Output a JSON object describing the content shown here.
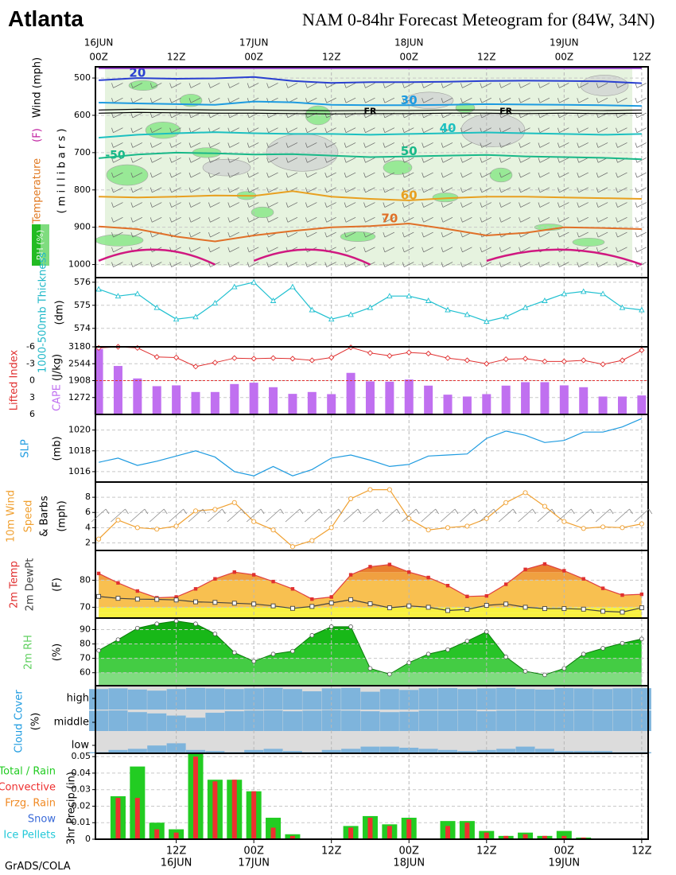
{
  "header": {
    "city": "Atlanta",
    "title": "NAM 0-84hr Forecast Meteogram for (84W, 34N)",
    "footer": "GrADS/COLA"
  },
  "time_axis": {
    "top_labels": [
      {
        "h": 0,
        "l1": "16JUN",
        "l2": "00Z"
      },
      {
        "h": 12,
        "l1": "",
        "l2": "12Z"
      },
      {
        "h": 24,
        "l1": "17JUN",
        "l2": "00Z"
      },
      {
        "h": 36,
        "l1": "",
        "l2": "12Z"
      },
      {
        "h": 48,
        "l1": "18JUN",
        "l2": "00Z"
      },
      {
        "h": 60,
        "l1": "",
        "l2": "12Z"
      },
      {
        "h": 72,
        "l1": "19JUN",
        "l2": "00Z"
      },
      {
        "h": 84,
        "l1": "",
        "l2": "12Z"
      }
    ],
    "bottom_labels": [
      {
        "h": 12,
        "l1": "12Z",
        "l2": "16JUN"
      },
      {
        "h": 24,
        "l1": "00Z",
        "l2": "17JUN"
      },
      {
        "h": 36,
        "l1": "12Z",
        "l2": ""
      },
      {
        "h": 48,
        "l1": "00Z",
        "l2": "18JUN"
      },
      {
        "h": 60,
        "l1": "12Z",
        "l2": ""
      },
      {
        "h": 72,
        "l1": "00Z",
        "l2": "19JUN"
      },
      {
        "h": 84,
        "l1": "12Z",
        "l2": ""
      }
    ]
  },
  "chart_data": [
    {
      "type": "line",
      "panel": "Temperature (F) / Wind (mph) / RH (%) cross-section",
      "ylabel_parts": [
        "Temperature",
        "(F)",
        "Wind (mph)"
      ],
      "ylabel_units": "( m i l l i b a r s )",
      "rh_label": "RH (%)",
      "y_ticks": [
        500,
        600,
        700,
        800,
        900,
        1000
      ],
      "ylim": [
        470,
        1035
      ],
      "isotherms": [
        {
          "label": "20",
          "color": "#2a40d0",
          "p": [
            506,
            500,
            502,
            501,
            497,
            508,
            513,
            511,
            511,
            510,
            508,
            507,
            508,
            509,
            514
          ]
        },
        {
          "label": "30",
          "color": "#1e9be0",
          "p": [
            566,
            568,
            570,
            572,
            563,
            565,
            572,
            573,
            573,
            572,
            570,
            571,
            572,
            573,
            575
          ]
        },
        {
          "label": "40",
          "color": "#1cc0c0",
          "p": [
            660,
            652,
            648,
            645,
            648,
            650,
            650,
            652,
            650,
            648,
            646,
            648,
            650,
            652,
            650
          ]
        },
        {
          "label": "50",
          "color": "#18b888",
          "p": [
            715,
            705,
            700,
            702,
            705,
            704,
            708,
            712,
            710,
            708,
            706,
            710,
            712,
            714,
            718
          ]
        },
        {
          "label": "60",
          "color": "#e8a020",
          "p": [
            818,
            820,
            818,
            815,
            816,
            803,
            818,
            824,
            828,
            822,
            818,
            818,
            820,
            822,
            824
          ]
        },
        {
          "label": "70",
          "color": "#e07028",
          "p": [
            898,
            905,
            925,
            938,
            922,
            910,
            900,
            897,
            890,
            905,
            922,
            915,
            900,
            902,
            905
          ]
        }
      ],
      "freezing_label": "FR",
      "freezing_level": [
        590,
        588,
        589,
        590,
        590,
        591,
        592,
        591,
        591,
        590,
        590,
        591,
        590,
        591,
        590
      ],
      "fr_marks": [
        42,
        63
      ]
    },
    {
      "type": "line",
      "panel": "1000-500mb Thickness (dm)",
      "ylabel": "1000-500mb Thickness",
      "yunits": "(dm)",
      "y_ticks": [
        574,
        575,
        576
      ],
      "ylim": [
        573.2,
        576.2
      ],
      "x": [
        0,
        3,
        6,
        9,
        12,
        15,
        18,
        21,
        24,
        27,
        30,
        33,
        36,
        39,
        42,
        45,
        48,
        51,
        54,
        57,
        60,
        63,
        66,
        69,
        72,
        75,
        78,
        81,
        84
      ],
      "values": [
        575.7,
        575.4,
        575.5,
        574.9,
        574.4,
        574.5,
        575.1,
        575.8,
        576.0,
        575.2,
        575.8,
        574.8,
        574.4,
        574.6,
        574.9,
        575.4,
        575.4,
        575.2,
        574.8,
        574.6,
        574.3,
        574.5,
        574.9,
        575.2,
        575.5,
        575.6,
        575.5,
        574.9,
        574.8
      ]
    },
    {
      "type": "bar",
      "panel": "Lifted Index / CAPE (J/kg)",
      "ylabel_left": "Lifted Index",
      "ylabel_right": "CAPE",
      "yunits": "(J/kg)",
      "li_ticks": [
        -6,
        -3,
        0,
        3,
        6
      ],
      "cape_ticks": [
        1272,
        1908,
        2544,
        3180
      ],
      "li_range": [
        -6,
        6
      ],
      "cape_range": [
        636,
        3180
      ],
      "x": [
        0,
        3,
        6,
        9,
        12,
        15,
        18,
        21,
        24,
        27,
        30,
        33,
        36,
        39,
        42,
        45,
        48,
        51,
        54,
        57,
        60,
        63,
        66,
        69,
        72,
        75,
        78,
        81,
        84
      ],
      "lifted_index": [
        -5.8,
        -6.0,
        -5.8,
        -4.2,
        -4.1,
        -2.5,
        -3.2,
        -4.0,
        -3.9,
        -4.0,
        -3.9,
        -3.6,
        -4.1,
        -5.9,
        -4.9,
        -4.4,
        -5.0,
        -4.8,
        -4.0,
        -3.6,
        -3.0,
        -3.8,
        -3.9,
        -3.4,
        -3.4,
        -3.6,
        -2.9,
        -3.6,
        -5.4
      ],
      "cape": [
        3100,
        2460,
        1990,
        1700,
        1730,
        1480,
        1480,
        1780,
        1830,
        1660,
        1410,
        1480,
        1400,
        2200,
        1880,
        1870,
        1950,
        1720,
        1380,
        1310,
        1400,
        1720,
        1850,
        1850,
        1730,
        1660,
        1310,
        1310,
        1350
      ]
    },
    {
      "type": "line",
      "panel": "SLP (mb)",
      "ylabel": "SLP",
      "yunits": "(mb)",
      "y_ticks": [
        1016,
        1018,
        1020
      ],
      "ylim": [
        1015,
        1021.5
      ],
      "x": [
        0,
        3,
        6,
        9,
        12,
        15,
        18,
        21,
        24,
        27,
        30,
        33,
        36,
        39,
        42,
        45,
        48,
        51,
        54,
        57,
        60,
        63,
        66,
        69,
        72,
        75,
        78,
        81,
        84
      ],
      "values": [
        1016.9,
        1017.3,
        1016.6,
        1017.0,
        1017.5,
        1018.0,
        1017.4,
        1016.0,
        1015.6,
        1016.5,
        1015.6,
        1016.2,
        1017.3,
        1017.6,
        1017.1,
        1016.5,
        1016.7,
        1017.5,
        1017.6,
        1017.7,
        1019.2,
        1019.9,
        1019.5,
        1018.8,
        1019.0,
        1019.8,
        1019.8,
        1020.3,
        1021.1
      ]
    },
    {
      "type": "line",
      "panel": "10m Wind Speed & Barbs (mph)",
      "ylabel": "10m Wind Speed & Barbs",
      "yunits": "(mph)",
      "y_ticks": [
        2,
        4,
        6,
        8
      ],
      "ylim": [
        1,
        10
      ],
      "x": [
        0,
        3,
        6,
        9,
        12,
        15,
        18,
        21,
        24,
        27,
        30,
        33,
        36,
        39,
        42,
        45,
        48,
        51,
        54,
        57,
        60,
        63,
        66,
        69,
        72,
        75,
        78,
        81,
        84
      ],
      "values": [
        2.5,
        5.0,
        4.0,
        3.8,
        4.2,
        6.2,
        6.4,
        7.3,
        4.8,
        3.7,
        1.5,
        2.3,
        4.0,
        7.8,
        9.0,
        9.0,
        5.2,
        3.7,
        4.0,
        4.2,
        5.2,
        7.3,
        8.6,
        6.8,
        4.8,
        3.9,
        4.1,
        4.0,
        4.5
      ]
    },
    {
      "type": "area",
      "panel": "2m Temp / 2m DewPt (F)",
      "ylabel_1": "2m Temp",
      "ylabel_2": "2m DewPt",
      "yunits": "(F)",
      "y_ticks": [
        70,
        80
      ],
      "ylim": [
        66,
        91
      ],
      "x": [
        0,
        3,
        6,
        9,
        12,
        15,
        18,
        21,
        24,
        27,
        30,
        33,
        36,
        39,
        42,
        45,
        48,
        51,
        54,
        57,
        60,
        63,
        66,
        69,
        72,
        75,
        78,
        81,
        84
      ],
      "series": [
        {
          "name": "2m Temp",
          "values": [
            82.5,
            79.0,
            76.0,
            73.5,
            73.8,
            76.8,
            80.5,
            83.0,
            82.0,
            79.5,
            76.8,
            73.0,
            73.8,
            82.0,
            85.0,
            85.8,
            83.0,
            81.0,
            78.0,
            74.0,
            74.2,
            78.5,
            84.0,
            86.0,
            83.5,
            80.5,
            77.0,
            74.5,
            74.8
          ]
        },
        {
          "name": "2m DewPt",
          "values": [
            74.0,
            73.3,
            73.0,
            72.9,
            72.7,
            72.0,
            71.8,
            71.5,
            71.2,
            70.5,
            69.6,
            70.3,
            71.6,
            72.8,
            71.3,
            69.8,
            70.5,
            70.0,
            68.8,
            69.2,
            70.7,
            71.2,
            70.0,
            69.5,
            69.5,
            69.3,
            68.5,
            68.2,
            69.8
          ]
        }
      ]
    },
    {
      "type": "area",
      "panel": "2m RH (%)",
      "ylabel": "2m RH",
      "yunits": "(%)",
      "y_ticks": [
        60,
        70,
        80,
        90
      ],
      "ylim": [
        51,
        98
      ],
      "x": [
        0,
        3,
        6,
        9,
        12,
        15,
        18,
        21,
        24,
        27,
        30,
        33,
        36,
        39,
        42,
        45,
        48,
        51,
        54,
        57,
        60,
        63,
        66,
        69,
        72,
        75,
        78,
        81,
        84
      ],
      "values": [
        75.5,
        83.0,
        91.0,
        94.0,
        96.0,
        94.0,
        87.0,
        74.0,
        68.0,
        73.0,
        75.0,
        86.0,
        92.0,
        92.0,
        63.0,
        59.0,
        67.0,
        73.0,
        76.0,
        82.0,
        88.5,
        71.0,
        61.0,
        58.5,
        63.0,
        73.0,
        77.0,
        80.5,
        83.5
      ]
    },
    {
      "type": "heatmap",
      "panel": "Cloud Cover (%)",
      "ylabel": "Cloud Cover",
      "yunits": "(%)",
      "row_labels": [
        "high",
        "middle",
        "low"
      ],
      "x": [
        0,
        3,
        6,
        9,
        12,
        15,
        18,
        21,
        24,
        27,
        30,
        33,
        36,
        39,
        42,
        45,
        48,
        51,
        54,
        57,
        60,
        63,
        66,
        69,
        72,
        75,
        78,
        81,
        84
      ],
      "high": [
        0.92,
        0.95,
        0.9,
        0.85,
        0.92,
        0.97,
        0.95,
        0.92,
        0.95,
        0.97,
        0.92,
        0.82,
        0.95,
        0.97,
        0.8,
        0.92,
        0.88,
        0.95,
        0.96,
        0.92,
        0.95,
        0.97,
        0.92,
        0.9,
        0.96,
        0.95,
        0.92,
        0.95,
        0.96
      ],
      "middle": [
        0.95,
        0.96,
        0.88,
        0.82,
        0.72,
        0.62,
        0.85,
        0.92,
        0.95,
        0.96,
        0.92,
        0.95,
        0.97,
        0.95,
        0.92,
        0.88,
        0.9,
        0.95,
        0.95,
        0.96,
        0.92,
        0.95,
        0.96,
        0.95,
        0.95,
        0.96,
        0.95,
        0.96,
        0.96
      ],
      "low": [
        0.05,
        0.15,
        0.2,
        0.35,
        0.45,
        0.15,
        0.1,
        0.05,
        0.15,
        0.2,
        0.1,
        0.05,
        0.15,
        0.2,
        0.3,
        0.3,
        0.25,
        0.2,
        0.15,
        0.1,
        0.15,
        0.2,
        0.3,
        0.2,
        0.1,
        0.1,
        0.1,
        0.05,
        0.05
      ]
    },
    {
      "type": "bar",
      "panel": "3hr Precip (in)",
      "ylabel": "3hr Precip (in)",
      "legend": [
        {
          "name": "Total / Rain",
          "color": "#22cc22"
        },
        {
          "name": "Convective",
          "color": "#ee3030"
        },
        {
          "name": "Frzg. Rain",
          "color": "#f08a24"
        },
        {
          "name": "Snow",
          "color": "#3a6ad8"
        },
        {
          "name": "Ice Pellets",
          "color": "#22c8d8"
        }
      ],
      "y_ticks": [
        0,
        0.01,
        0.02,
        0.03,
        0.04,
        0.05
      ],
      "ylim": [
        0,
        0.052
      ],
      "x": [
        3,
        6,
        9,
        12,
        15,
        18,
        21,
        24,
        27,
        30,
        33,
        36,
        39,
        42,
        45,
        48,
        51,
        54,
        57,
        60,
        63,
        66,
        69,
        72,
        75,
        78,
        81,
        84
      ],
      "total": [
        0.026,
        0.044,
        0.01,
        0.006,
        0.052,
        0.036,
        0.036,
        0.029,
        0.013,
        0.003,
        0.0,
        0.0,
        0.008,
        0.014,
        0.009,
        0.013,
        0.0,
        0.011,
        0.011,
        0.005,
        0.002,
        0.004,
        0.002,
        0.005,
        0.001,
        0.0,
        0.0,
        0.0
      ],
      "convective": [
        0.025,
        0.025,
        0.006,
        0.004,
        0.05,
        0.035,
        0.036,
        0.029,
        0.007,
        0.002,
        0.0,
        0.0,
        0.007,
        0.013,
        0.008,
        0.012,
        0.0,
        0.008,
        0.01,
        0.004,
        0.002,
        0.003,
        0.002,
        0.002,
        0.001,
        0.0,
        0.0,
        0.0
      ]
    }
  ]
}
